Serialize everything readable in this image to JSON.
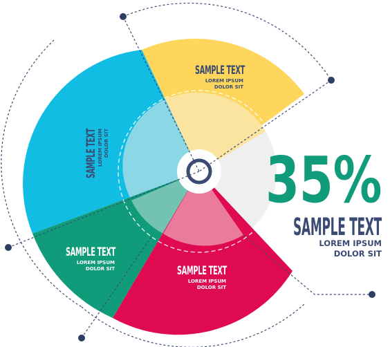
{
  "highlight": {
    "percent": "35%",
    "title": "SAMPLE TEXT",
    "line1": "LOREM IPSUM",
    "line2": "DOLOR SIT"
  },
  "segments": [
    {
      "key": "yellow",
      "title": "SAMPLE TEXT",
      "line1": "LOREM IPSUM",
      "line2": "DOLOR SIT",
      "color": "#FFD65C",
      "inner_color": "#FBE3A0"
    },
    {
      "key": "blue",
      "title": "SAMPLE TEXT",
      "line1": "LOREM IPSUM",
      "line2": "DOLOR SIT",
      "color": "#12BDE3",
      "inner_color": "#8BD7E6"
    },
    {
      "key": "green",
      "title": "SAMPLE TEXT",
      "line1": "LOREM IPSUM",
      "line2": "DOLOR SIT",
      "color": "#109C7A",
      "inner_color": "#73C3B2"
    },
    {
      "key": "red",
      "title": "SAMPLE TEXT",
      "line1": "LOREM IPSUM",
      "line2": "DOLOR SIT",
      "color": "#DF0A50",
      "inner_color": "#EB7B9C"
    }
  ],
  "colors": {
    "accent_green": "#109C7A",
    "navy": "#3A4A73",
    "gray_sector": "#EFEFEF",
    "dot": "#2E3D62"
  }
}
